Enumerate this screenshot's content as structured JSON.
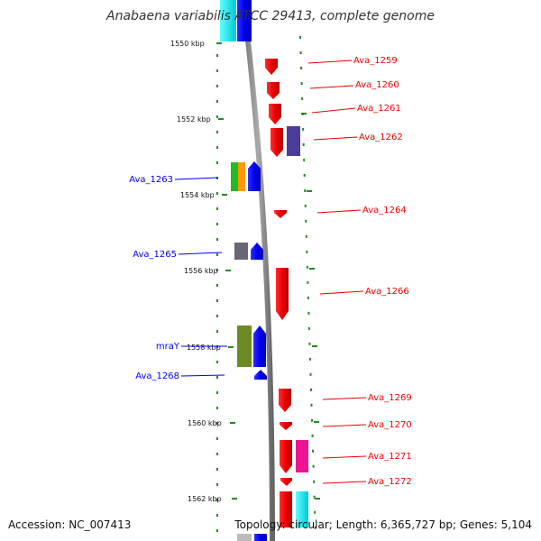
{
  "header": {
    "title": "Anabaena variabilis ATCC 29413, complete genome"
  },
  "footer": {
    "accession": "Accession: NC_007413",
    "topology": "Topology: circular; Length: 6,365,727 bp; Genes: 5,104"
  },
  "axis": {
    "scale_labels": [
      "1550 kbp",
      "1552 kbp",
      "1554 kbp",
      "1556 kbp",
      "1558 kbp",
      "1560 kbp",
      "1562 kbp"
    ]
  },
  "genes": {
    "left": [
      {
        "label": "Ava_1263"
      },
      {
        "label": "Ava_1265"
      },
      {
        "label": "mraY"
      },
      {
        "label": "Ava_1268"
      }
    ],
    "right": [
      {
        "label": "Ava_1259"
      },
      {
        "label": "Ava_1260"
      },
      {
        "label": "Ava_1261"
      },
      {
        "label": "Ava_1262"
      },
      {
        "label": "Ava_1264"
      },
      {
        "label": "Ava_1266"
      },
      {
        "label": "Ava_1269"
      },
      {
        "label": "Ava_1270"
      },
      {
        "label": "Ava_1271"
      },
      {
        "label": "Ava_1272"
      }
    ]
  },
  "colors": {
    "reverse_strand": "#0000ee",
    "forward_strand": "#ee0000",
    "tick": "#228b22",
    "backbone": "#888888"
  }
}
